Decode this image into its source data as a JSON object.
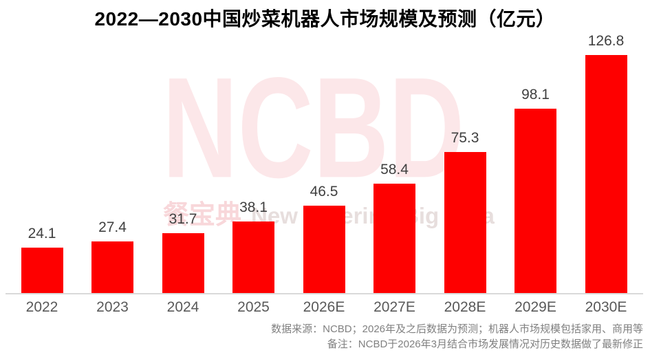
{
  "title": "2022—2030中国炒菜机器人市场规模及预测（亿元）",
  "watermark": {
    "logo": "NCBD",
    "brand_cn": "餐宝典",
    "brand_en": "New Catering Big Data"
  },
  "footer": {
    "line1": "数据来源：NCBD；2026年及之后数据为预测；机器人市场规模包括家用、商用等",
    "line2": "备注：NCBD于2026年3月结合市场发展情况对历史数据做了最新修正"
  },
  "colors": {
    "bar": "#fe0000",
    "title_text": "#000000",
    "data_label": "#404040",
    "axis_label": "#595959",
    "axis_line": "#d9d9d9",
    "footer_text": "#808080",
    "watermark_logo": "#fce7e9",
    "watermark_cn": "#f8d7da",
    "watermark_en": "#e7dedd"
  },
  "chart_data": {
    "type": "bar",
    "title": "2022—2030中国炒菜机器人市场规模及预测（亿元）",
    "categories": [
      "2022",
      "2023",
      "2024",
      "2025",
      "2026E",
      "2027E",
      "2028E",
      "2029E",
      "2030E"
    ],
    "values": [
      24.1,
      27.4,
      31.7,
      38.1,
      46.5,
      58.4,
      75.3,
      98.1,
      126.8
    ],
    "xlabel": "",
    "ylabel": "",
    "unit": "亿元",
    "ylim": [
      0,
      135
    ],
    "grid": false,
    "legend": "none",
    "data_labels": true,
    "bar_color": "#fe0000"
  }
}
